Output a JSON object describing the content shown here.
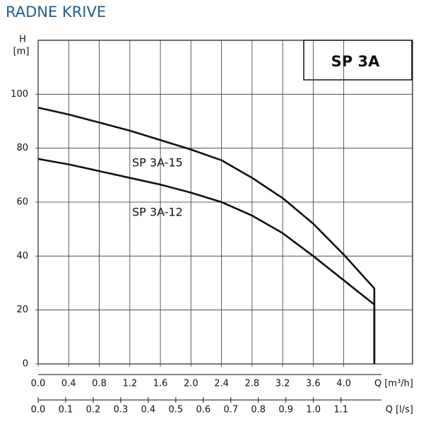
{
  "chart_data": {
    "type": "line",
    "title": "RADNE KRIVE",
    "model_label": "SP 3A",
    "y_label_top": "H",
    "y_label_unit": "[m]",
    "x_label": "Q [m³/h]",
    "x2_label": "Q [l/s]",
    "xlim": [
      0,
      4.9
    ],
    "ylim": [
      0,
      120
    ],
    "x2lim": [
      0,
      1.36
    ],
    "xticks": [
      {
        "value": 0,
        "label": "0.0"
      },
      0.4,
      0.8,
      1.2,
      1.6,
      {
        "value": 2,
        "label": "2.0"
      },
      2.4,
      2.8,
      3.2,
      3.6,
      {
        "value": 4,
        "label": "4.0"
      }
    ],
    "yticks": [
      0,
      20,
      40,
      60,
      80,
      100
    ],
    "x2ticks": [
      {
        "value": 0,
        "label": "0.0"
      },
      0.1,
      0.2,
      0.3,
      0.4,
      0.5,
      0.6,
      0.7,
      0.8,
      0.9,
      {
        "value": 1,
        "label": "1.0"
      },
      1.1
    ],
    "grid": true,
    "series": [
      {
        "name": "SP 3A-15",
        "color": "#111111",
        "x": [
          0,
          0.4,
          0.8,
          1.2,
          1.6,
          2.0,
          2.4,
          2.8,
          3.2,
          3.6,
          4.0,
          4.4,
          4.4
        ],
        "values": [
          95,
          92.5,
          89.5,
          86.5,
          83,
          79.5,
          75.5,
          69,
          61.5,
          52,
          40.5,
          28,
          0
        ]
      },
      {
        "name": "SP 3A-12",
        "color": "#111111",
        "x": [
          0,
          0.4,
          0.8,
          1.2,
          1.6,
          2.0,
          2.4,
          2.8,
          3.2,
          3.6,
          4.0,
          4.4,
          4.4
        ],
        "values": [
          76,
          74,
          71.5,
          69,
          66.5,
          63.5,
          60,
          55,
          48.5,
          40,
          31,
          22,
          0
        ]
      }
    ]
  }
}
